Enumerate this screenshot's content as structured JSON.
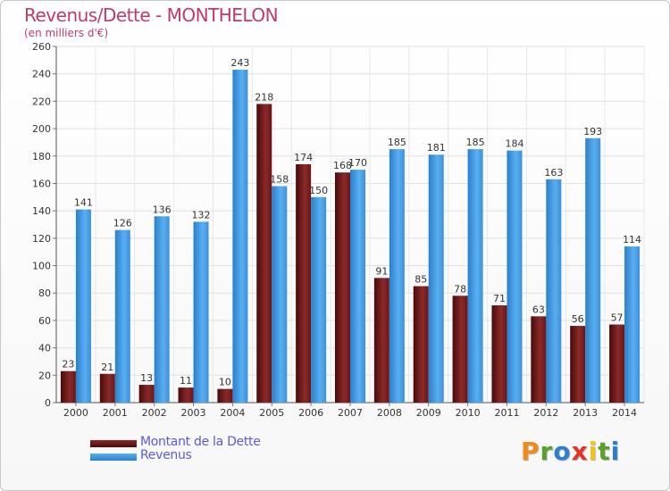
{
  "chart_data": {
    "type": "bar",
    "title": "Revenus/Dette - MONTHELON",
    "subtitle": "(en milliers d'€)",
    "categories": [
      "2000",
      "2001",
      "2002",
      "2003",
      "2004",
      "2005",
      "2006",
      "2007",
      "2008",
      "2009",
      "2010",
      "2011",
      "2012",
      "2013",
      "2014"
    ],
    "series": [
      {
        "name": "Montant de la Dette",
        "color": "#7a1a1a",
        "values": [
          23,
          21,
          13,
          11,
          10,
          218,
          174,
          168,
          91,
          85,
          78,
          71,
          63,
          56,
          57
        ]
      },
      {
        "name": "Revenus",
        "color": "#3b96e0",
        "values": [
          141,
          126,
          136,
          132,
          243,
          158,
          150,
          170,
          185,
          181,
          185,
          184,
          163,
          193,
          114
        ]
      }
    ],
    "ylim": [
      0,
      260
    ],
    "ytick_step": 20,
    "grid": true,
    "legend": "bottom-left"
  },
  "branding": {
    "logo_text": "Proxiti",
    "logo_colors": [
      "#f08a1c",
      "#5aa02c",
      "#2a7fd0",
      "#e0342b",
      "#f0c419",
      "#5aa02c",
      "#2a7fd0"
    ]
  }
}
